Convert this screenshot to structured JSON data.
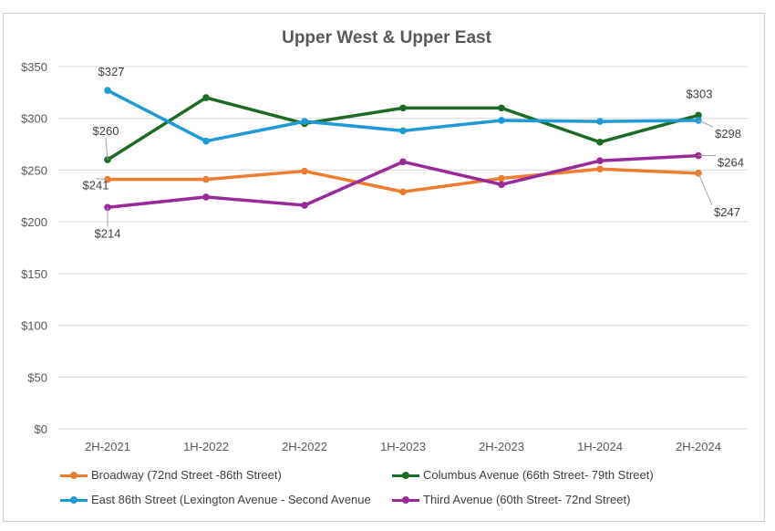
{
  "chart_data": {
    "type": "line",
    "title": "Upper West & Upper East",
    "xlabel": "",
    "ylabel": "",
    "categories": [
      "2H-2021",
      "1H-2022",
      "2H-2022",
      "1H-2023",
      "2H-2023",
      "1H-2024",
      "2H-2024"
    ],
    "ylim": [
      0,
      350
    ],
    "yticks": [
      0,
      50,
      100,
      150,
      200,
      250,
      300,
      350
    ],
    "ytick_labels": [
      "$0",
      "$50",
      "$100",
      "$150",
      "$200",
      "$250",
      "$300",
      "$350"
    ],
    "grid": true,
    "legend_position": "bottom",
    "series": [
      {
        "name": "Broadway (72nd Street -86th Street)",
        "color": "#ED7D31",
        "values": [
          241,
          241,
          249,
          229,
          242,
          251,
          247
        ]
      },
      {
        "name": "Columbus Avenue (66th Street- 79th Street)",
        "color": "#1E6B25",
        "values": [
          260,
          320,
          295,
          310,
          310,
          277,
          303
        ]
      },
      {
        "name": "East 86th Street (Lexington Avenue - Second Avenue",
        "color": "#1F9AD6",
        "values": [
          327,
          278,
          297,
          288,
          298,
          297,
          298
        ]
      },
      {
        "name": "Third Avenue (60th Street- 72nd Street)",
        "color": "#982B98",
        "values": [
          214,
          224,
          216,
          258,
          236,
          259,
          264
        ]
      }
    ],
    "data_labels": [
      {
        "series": 2,
        "index": 0,
        "text": "$327"
      },
      {
        "series": 1,
        "index": 0,
        "text": "$260"
      },
      {
        "series": 0,
        "index": 0,
        "text": "$241"
      },
      {
        "series": 3,
        "index": 0,
        "text": "$214"
      },
      {
        "series": 1,
        "index": 6,
        "text": "$303"
      },
      {
        "series": 2,
        "index": 6,
        "text": "$298"
      },
      {
        "series": 3,
        "index": 6,
        "text": "$264"
      },
      {
        "series": 0,
        "index": 6,
        "text": "$247"
      }
    ]
  }
}
